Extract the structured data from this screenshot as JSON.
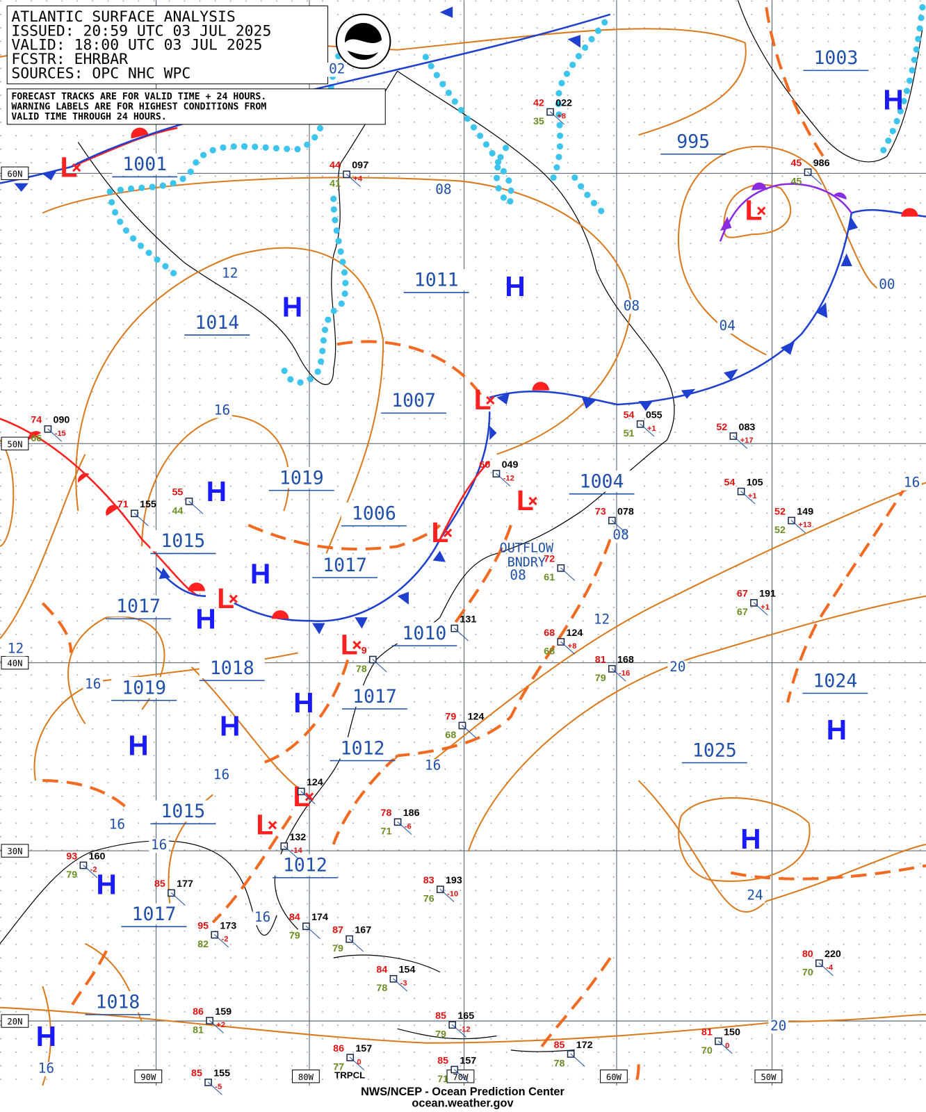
{
  "header": {
    "title": "ATLANTIC SURFACE ANALYSIS",
    "issued": "ISSUED: 20:59 UTC 03 JUL 2025",
    "valid": "VALID:  18:00 UTC 03 JUL 2025",
    "forecaster": "FCSTR:  EHRBAR",
    "sources": "SOURCES: OPC NHC WPC"
  },
  "note": [
    "FORECAST TRACKS ARE FOR VALID TIME + 24 HOURS.",
    "WARNING LABELS ARE FOR HIGHEST CONDITIONS FROM",
    "VALID TIME THROUGH 24 HOURS."
  ],
  "latitudes": [
    "60N",
    "50N",
    "40N",
    "30N",
    "20N"
  ],
  "longitudes": [
    "90W",
    "80W",
    "70W",
    "60W",
    "50W"
  ],
  "high_symbol": "H",
  "low_symbol": "L",
  "pressure_labels": [
    "1001",
    "1014",
    "1011",
    "995",
    "1003",
    "1007",
    "1019",
    "1006",
    "1015",
    "1004",
    "1017",
    "1017",
    "1010",
    "1018",
    "1019",
    "1017",
    "1024",
    "1012",
    "1025",
    "1015",
    "1012",
    "1017",
    "1018"
  ],
  "isobar_labels": [
    "02",
    "08",
    "12",
    "08",
    "00",
    "04",
    "16",
    "08",
    "08",
    "12",
    "20",
    "16",
    "12",
    "16",
    "16",
    "16",
    "16",
    "16",
    "16",
    "24",
    "20",
    "16"
  ],
  "annotations": [
    "OUTFLOW",
    "BNDRY"
  ],
  "stations": [
    {
      "temp": "42",
      "pressure": "022",
      "dewpoint": "35",
      "tendency": "+8"
    },
    {
      "temp": "44",
      "pressure": "097",
      "dewpoint": "41",
      "tendency": "+4"
    },
    {
      "temp": "45",
      "pressure": "986",
      "dewpoint": "45"
    },
    {
      "temp": "74",
      "pressure": "090",
      "dewpoint": "66",
      "tendency": "-15"
    },
    {
      "temp": "71",
      "pressure": "155"
    },
    {
      "temp": "55",
      "dewpoint": "44"
    },
    {
      "temp": "60",
      "pressure": "049",
      "tendency": "-12"
    },
    {
      "temp": "54",
      "pressure": "055",
      "dewpoint": "51",
      "tendency": "+1"
    },
    {
      "temp": "52",
      "pressure": "083",
      "tendency": "+17"
    },
    {
      "temp": "54",
      "pressure": "105",
      "tendency": "+1"
    },
    {
      "temp": "52",
      "pressure": "149",
      "dewpoint": "52",
      "tendency": "+13"
    },
    {
      "temp": "73",
      "pressure": "078"
    },
    {
      "temp": "72",
      "dewpoint": "61"
    },
    {
      "temp": "67",
      "pressure": "191",
      "dewpoint": "67",
      "tendency": "+1"
    },
    {
      "temp": "68",
      "pressure": "124",
      "dewpoint": "68",
      "tendency": "+8"
    },
    {
      "temp": "81",
      "pressure": "168",
      "dewpoint": "79",
      "tendency": "-16"
    },
    {
      "temp": "79",
      "pressure": "124",
      "dewpoint": "68"
    },
    {
      "temp": "78",
      "pressure": "186",
      "dewpoint": "71",
      "tendency": "-6"
    },
    {
      "temp": "83",
      "pressure": "193",
      "dewpoint": "76",
      "tendency": "-10"
    },
    {
      "pressure": "132",
      "tendency": "-14"
    },
    {
      "temp": "93",
      "pressure": "160",
      "dewpoint": "79",
      "tendency": "-2"
    },
    {
      "temp": "85",
      "pressure": "177"
    },
    {
      "temp": "95",
      "pressure": "173",
      "dewpoint": "82",
      "tendency": "-2"
    },
    {
      "temp": "84",
      "pressure": "174",
      "dewpoint": "79"
    },
    {
      "temp": "87",
      "pressure": "167",
      "dewpoint": "79"
    },
    {
      "temp": "84",
      "pressure": "154",
      "dewpoint": "78",
      "tendency": "-3"
    },
    {
      "temp": "80",
      "pressure": "220",
      "dewpoint": "70",
      "tendency": "-4"
    },
    {
      "temp": "86",
      "pressure": "159",
      "dewpoint": "81",
      "tendency": "+2"
    },
    {
      "temp": "85",
      "pressure": "165",
      "dewpoint": "79",
      "tendency": "-12"
    },
    {
      "temp": "85",
      "pressure": "172",
      "dewpoint": "78"
    },
    {
      "temp": "81",
      "pressure": "150",
      "dewpoint": "70",
      "tendency": "0"
    },
    {
      "temp": "86",
      "pressure": "157",
      "dewpoint": "77",
      "tendency": "0"
    },
    {
      "temp": "85",
      "pressure": "157",
      "dewpoint": "71"
    },
    {
      "temp": "85",
      "pressure": "155",
      "tendency": "-5"
    },
    {
      "pressure": "124"
    },
    {
      "pressure": "131"
    },
    {
      "temp": "9",
      "dewpoint": "78"
    }
  ],
  "footer": {
    "agency": "NWS/NCEP - Ocean Prediction Center",
    "site": "ocean.weather.gov",
    "tropical": "TRPCL"
  }
}
